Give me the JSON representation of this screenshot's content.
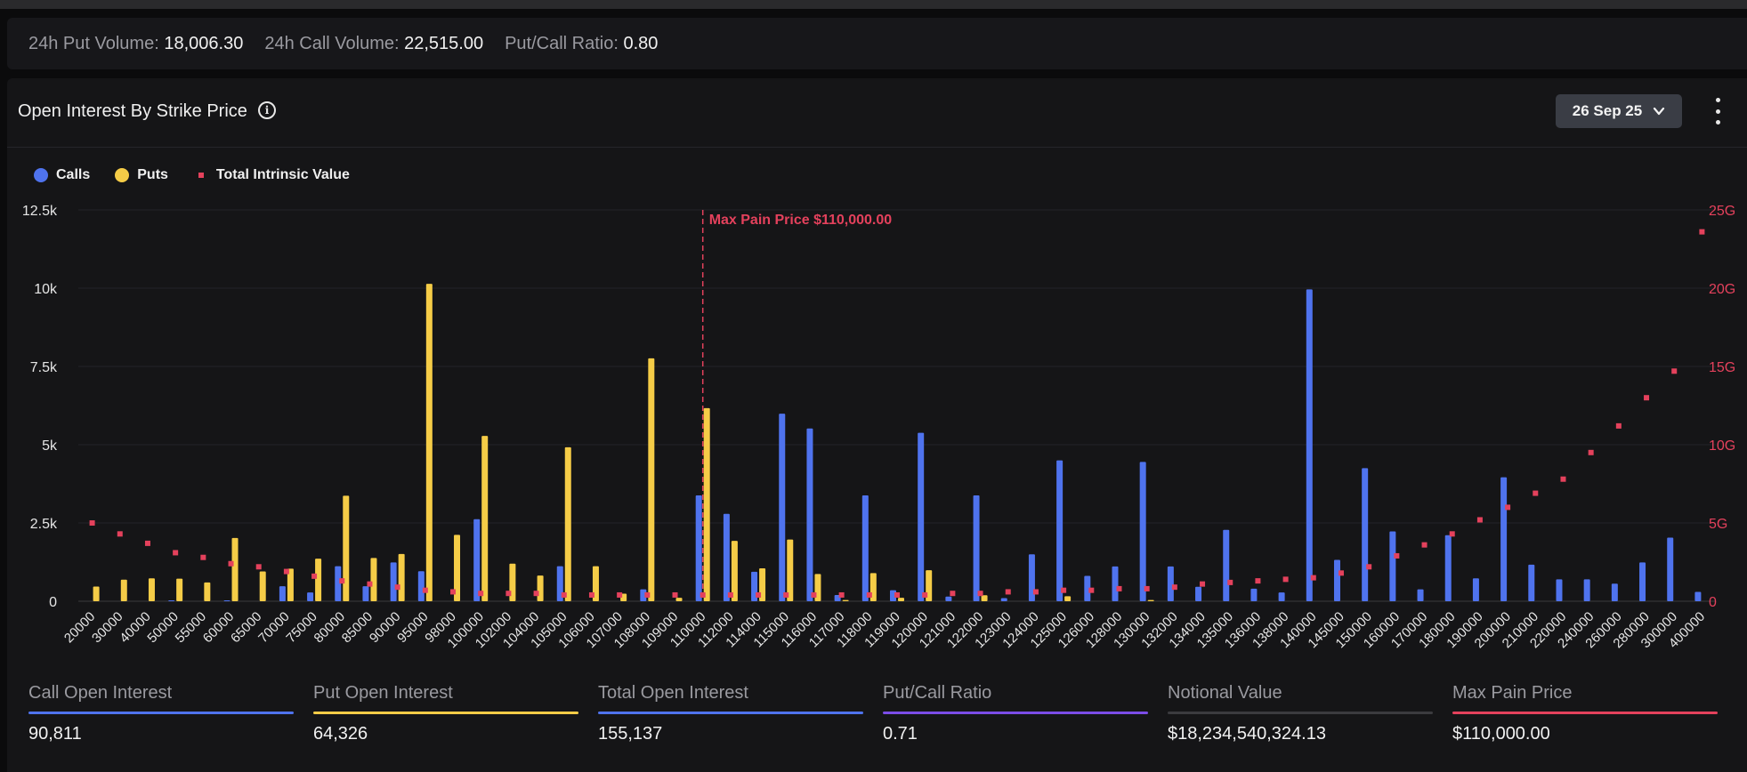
{
  "stats": [
    {
      "label": "24h Put Volume:",
      "value": "18,006.30"
    },
    {
      "label": "24h Call Volume:",
      "value": "22,515.00"
    },
    {
      "label": "Put/Call Ratio:",
      "value": "0.80"
    }
  ],
  "panel": {
    "title": "Open Interest By Strike Price",
    "date_selected": "26 Sep 25"
  },
  "legend": [
    {
      "label": "Calls",
      "color": "#4f73ee",
      "shape": "circle"
    },
    {
      "label": "Puts",
      "color": "#f5cc47",
      "shape": "circle"
    },
    {
      "label": "Total Intrinsic Value",
      "color": "#e4415c",
      "shape": "square"
    }
  ],
  "colors": {
    "calls": "#4f73ee",
    "puts": "#f5cc47",
    "intrinsic": "#e4415c",
    "background": "#151517",
    "grid": "#26262a"
  },
  "chart_data": {
    "type": "bar",
    "categories": [
      "20000",
      "30000",
      "40000",
      "50000",
      "55000",
      "60000",
      "65000",
      "70000",
      "75000",
      "80000",
      "85000",
      "90000",
      "95000",
      "98000",
      "100000",
      "102000",
      "104000",
      "105000",
      "106000",
      "107000",
      "108000",
      "109000",
      "110000",
      "112000",
      "114000",
      "115000",
      "116000",
      "117000",
      "118000",
      "119000",
      "120000",
      "121000",
      "122000",
      "123000",
      "124000",
      "125000",
      "126000",
      "128000",
      "130000",
      "132000",
      "134000",
      "135000",
      "136000",
      "138000",
      "140000",
      "145000",
      "150000",
      "160000",
      "170000",
      "180000",
      "190000",
      "200000",
      "210000",
      "220000",
      "240000",
      "260000",
      "280000",
      "300000",
      "400000"
    ],
    "series": [
      {
        "name": "Calls",
        "axis": "left",
        "values": [
          0,
          0,
          0,
          30,
          0,
          30,
          0,
          480,
          280,
          1120,
          480,
          1240,
          960,
          0,
          2620,
          0,
          0,
          1120,
          0,
          0,
          380,
          0,
          3380,
          2790,
          940,
          5990,
          5520,
          200,
          3380,
          350,
          5380,
          150,
          3380,
          100,
          1500,
          4500,
          810,
          1110,
          4450,
          1110,
          460,
          2280,
          400,
          280,
          9960,
          1320,
          4250,
          2230,
          380,
          2110,
          730,
          3960,
          1170,
          700,
          700,
          560,
          1240,
          2030,
          300
        ]
      },
      {
        "name": "Puts",
        "axis": "left",
        "values": [
          470,
          690,
          730,
          720,
          600,
          2020,
          950,
          1040,
          1360,
          3370,
          1380,
          1510,
          10140,
          2120,
          5280,
          1200,
          820,
          4920,
          1120,
          240,
          7760,
          110,
          6170,
          1930,
          1050,
          1970,
          870,
          40,
          900,
          110,
          990,
          0,
          190,
          0,
          0,
          160,
          0,
          0,
          40,
          0,
          0,
          0,
          0,
          0,
          0,
          0,
          0,
          0,
          0,
          0,
          0,
          0,
          0,
          0,
          0,
          0,
          0,
          0,
          0
        ]
      },
      {
        "name": "Total Intrinsic Value",
        "axis": "right",
        "type": "scatter",
        "values": [
          5.0,
          4.3,
          3.7,
          3.1,
          2.8,
          2.4,
          2.2,
          1.9,
          1.6,
          1.3,
          1.1,
          0.9,
          0.7,
          0.6,
          0.5,
          0.5,
          0.5,
          0.4,
          0.4,
          0.4,
          0.4,
          0.4,
          0.4,
          0.4,
          0.4,
          0.4,
          0.4,
          0.4,
          0.4,
          0.4,
          0.4,
          0.5,
          0.5,
          0.6,
          0.6,
          0.7,
          0.7,
          0.8,
          0.8,
          0.9,
          1.1,
          1.2,
          1.3,
          1.4,
          1.5,
          1.8,
          2.2,
          2.9,
          3.6,
          4.3,
          5.2,
          6.0,
          6.9,
          7.8,
          9.5,
          11.2,
          13.0,
          14.7,
          23.6
        ]
      }
    ],
    "yLeft": {
      "ticks": [
        "0",
        "2.5k",
        "5k",
        "7.5k",
        "10k",
        "12.5k"
      ],
      "min": 0,
      "max": 12500
    },
    "yRight": {
      "ticks": [
        "0",
        "5G",
        "10G",
        "15G",
        "20G",
        "25G"
      ],
      "min": 0,
      "max": 25
    },
    "annotation": {
      "label": "Max Pain Price $110,000.00",
      "category": "110000"
    },
    "grid": true,
    "legend_position": "top-left"
  },
  "footer": [
    {
      "label": "Call Open Interest",
      "value": "90,811",
      "color": "#4f73ee"
    },
    {
      "label": "Put Open Interest",
      "value": "64,326",
      "color": "#f5cc47"
    },
    {
      "label": "Total Open Interest",
      "value": "155,137",
      "color": "#4f73ee"
    },
    {
      "label": "Put/Call Ratio",
      "value": "0.71",
      "color": "#7c4de8"
    },
    {
      "label": "Notional Value",
      "value": "$18,234,540,324.13",
      "color": "#3b3b3f"
    },
    {
      "label": "Max Pain Price",
      "value": "$110,000.00",
      "color": "#e4415c"
    }
  ]
}
